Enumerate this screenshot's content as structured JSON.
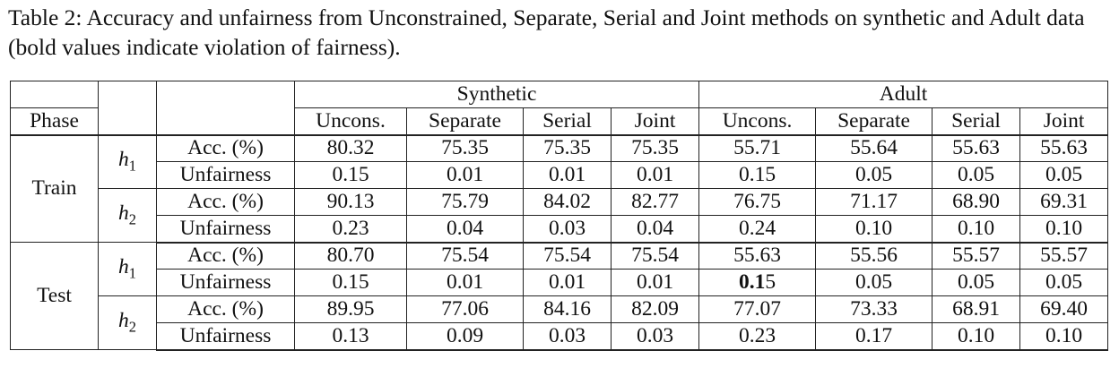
{
  "caption": "Table 2: Accuracy and unfairness from Unconstrained, Separate, Serial and Joint methods on synthetic and Adult data (bold values indicate violation of fairness).",
  "header": {
    "phase": "Phase",
    "groups": [
      "Synthetic",
      "Adult"
    ],
    "methods": [
      "Uncons.",
      "Separate",
      "Serial",
      "Joint",
      "Uncons.",
      "Separate",
      "Serial",
      "Joint"
    ]
  },
  "sections": [
    {
      "phase": "Train",
      "hypotheses": [
        {
          "base": "h",
          "sub": "1",
          "rows": [
            {
              "metric": "Acc. (%)",
              "values": [
                "80.32",
                "75.35",
                "75.35",
                "75.35",
                "55.71",
                "55.64",
                "55.63",
                "55.63"
              ]
            },
            {
              "metric": "Unfairness",
              "values": [
                "0.15",
                "0.01",
                "0.01",
                "0.01",
                "0.15",
                "0.05",
                "0.05",
                "0.05"
              ]
            }
          ]
        },
        {
          "base": "h",
          "sub": "2",
          "rows": [
            {
              "metric": "Acc. (%)",
              "values": [
                "90.13",
                "75.79",
                "84.02",
                "82.77",
                "76.75",
                "71.17",
                "68.90",
                "69.31"
              ]
            },
            {
              "metric": "Unfairness",
              "values": [
                "0.23",
                "0.04",
                "0.03",
                "0.04",
                "0.24",
                "0.10",
                "0.10",
                "0.10"
              ]
            }
          ]
        }
      ]
    },
    {
      "phase": "Test",
      "hypotheses": [
        {
          "base": "h",
          "sub": "1",
          "rows": [
            {
              "metric": "Acc. (%)",
              "values": [
                "80.70",
                "75.54",
                "75.54",
                "75.54",
                "55.63",
                "55.56",
                "55.57",
                "55.57"
              ]
            },
            {
              "metric": "Unfairness",
              "values": [
                "0.15",
                "0.01",
                "0.01",
                "0.01",
                "0.15",
                "0.05",
                "0.05",
                "0.05"
              ]
            }
          ]
        },
        {
          "base": "h",
          "sub": "2",
          "rows": [
            {
              "metric": "Acc. (%)",
              "values": [
                "89.95",
                "77.06",
                "84.16",
                "82.09",
                "77.07",
                "73.33",
                "68.91",
                "69.40"
              ]
            },
            {
              "metric": "Unfairness",
              "values": [
                "0.13",
                "0.09",
                "0.03",
                "0.03",
                "0.23",
                "0.17",
                "0.10",
                "0.10"
              ]
            }
          ]
        }
      ]
    }
  ],
  "bold_cells": [
    {
      "section": 0,
      "hyp": 0,
      "row": 1,
      "cols": [
        0,
        4
      ]
    },
    {
      "section": 0,
      "hyp": 1,
      "row": 1,
      "cols": [
        0,
        4
      ]
    },
    {
      "section": 1,
      "hyp": 0,
      "row": 1,
      "cols": [
        0
      ]
    },
    {
      "section": 1,
      "hyp": 1,
      "row": 1,
      "cols": [
        0,
        1,
        4,
        5
      ]
    }
  ],
  "partial_bold_cells": [
    {
      "section": 1,
      "hyp": 0,
      "row": 1,
      "col": 4,
      "bold": "0.1",
      "rest": "5"
    }
  ]
}
